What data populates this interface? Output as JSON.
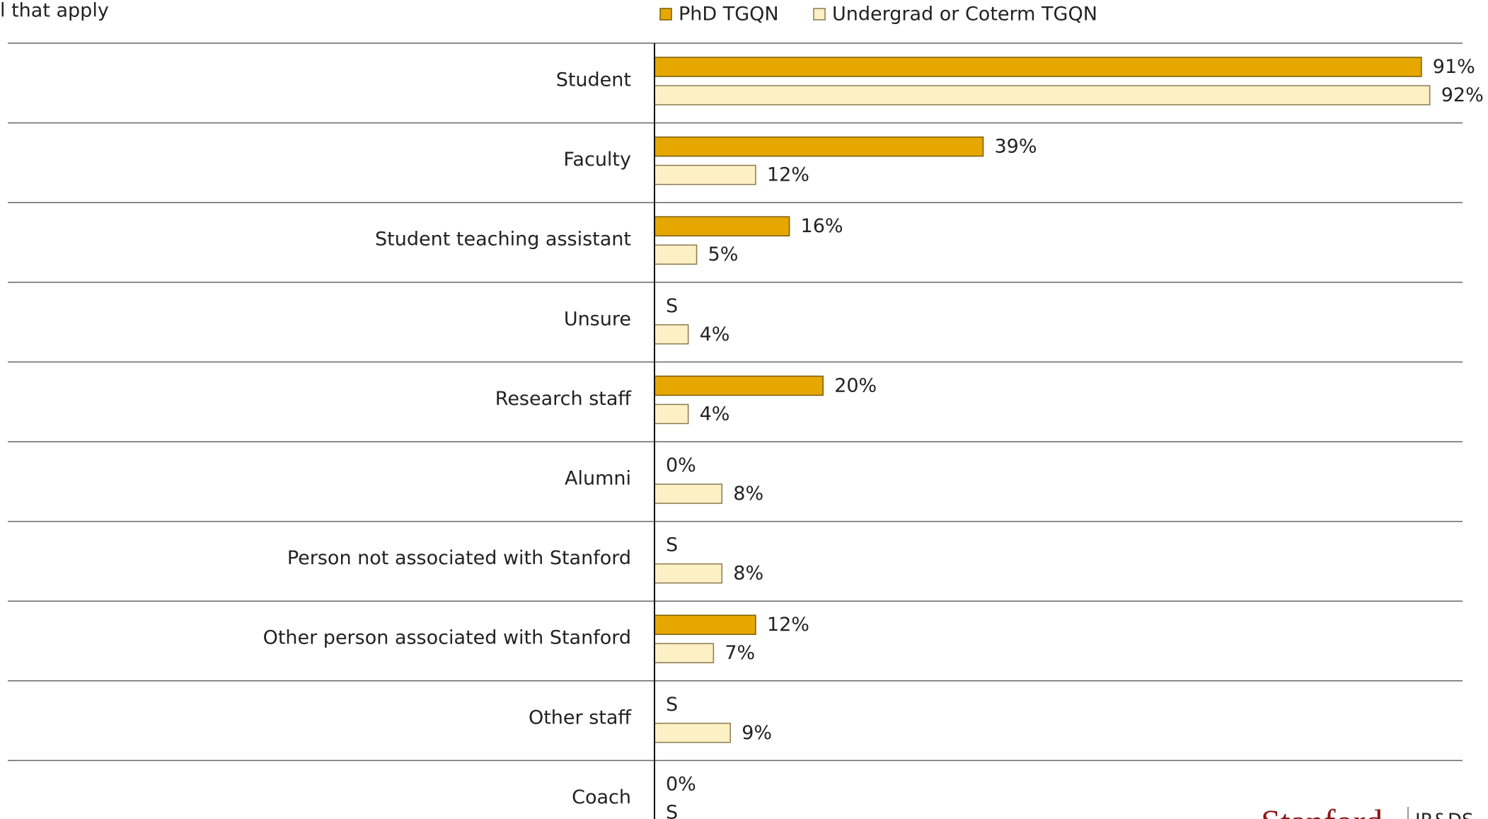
{
  "chart_data": {
    "type": "barh",
    "title": "l that apply",
    "categories": [
      "Student",
      "Faculty",
      "Student teaching assistant",
      "Unsure",
      "Research staff",
      "Alumni",
      "Person not associated with Stanford",
      "Other person associated with Stanford",
      "Other staff",
      "Coach"
    ],
    "series": [
      {
        "name": "PhD TGQN",
        "color": "#e6a800",
        "values": [
          91,
          39,
          16,
          null,
          20,
          0,
          null,
          12,
          null,
          0
        ],
        "value_labels": [
          "91%",
          "39%",
          "16%",
          "S",
          "20%",
          "0%",
          "S",
          "12%",
          "S",
          "0%"
        ]
      },
      {
        "name": "Undergrad or Coterm TGQN",
        "color": "#fdf0c4",
        "values": [
          92,
          12,
          5,
          4,
          4,
          8,
          8,
          7,
          9,
          null
        ],
        "value_labels": [
          "92%",
          "12%",
          "5%",
          "4%",
          "4%",
          "8%",
          "8%",
          "7%",
          "9%",
          "S"
        ]
      }
    ],
    "xlim": [
      0,
      100
    ],
    "logo": "Stanford",
    "logo_unit": "IR&DS"
  }
}
